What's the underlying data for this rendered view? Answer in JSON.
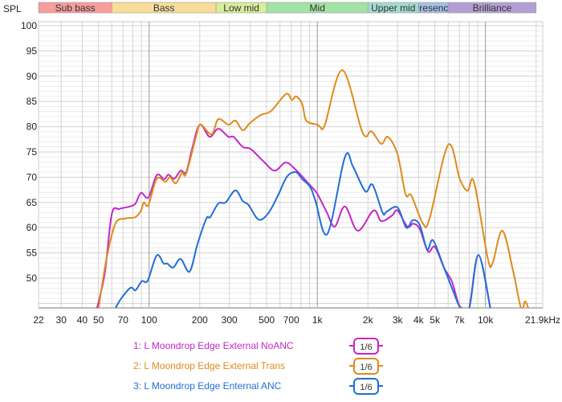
{
  "chart_data": {
    "type": "line",
    "ylabel": "SPL",
    "x_scale": "log",
    "xlim": [
      22,
      21900
    ],
    "ylim": [
      44.1,
      100.8
    ],
    "grid": true,
    "y_ticks": [
      50,
      55,
      60,
      65,
      70,
      75,
      80,
      85,
      90,
      95,
      100
    ],
    "x_ticks": [
      {
        "v": 22,
        "label": "22"
      },
      {
        "v": 30,
        "label": "30"
      },
      {
        "v": 40,
        "label": "40"
      },
      {
        "v": 50,
        "label": "50"
      },
      {
        "v": 70,
        "label": "70"
      },
      {
        "v": 100,
        "label": "100"
      },
      {
        "v": 200,
        "label": "200"
      },
      {
        "v": 300,
        "label": "300"
      },
      {
        "v": 500,
        "label": "500"
      },
      {
        "v": 700,
        "label": "700"
      },
      {
        "v": 1000,
        "label": "1k"
      },
      {
        "v": 2000,
        "label": "2k"
      },
      {
        "v": 3000,
        "label": "3k"
      },
      {
        "v": 4000,
        "label": "4k"
      },
      {
        "v": 5000,
        "label": "5k"
      },
      {
        "v": 7000,
        "label": "7k"
      },
      {
        "v": 10000,
        "label": "10k"
      },
      {
        "v": 21900,
        "label": "21.9kHz"
      }
    ],
    "bands": [
      {
        "name": "Sub bass",
        "from": 22,
        "to": 60,
        "color": "#f89c9c"
      },
      {
        "name": "Bass",
        "from": 60,
        "to": 250,
        "color": "#f8dd9a"
      },
      {
        "name": "Low mid",
        "from": 250,
        "to": 500,
        "color": "#d8ec9c"
      },
      {
        "name": "Mid",
        "from": 500,
        "to": 2000,
        "color": "#a2e2a4"
      },
      {
        "name": "Upper mid",
        "from": 2000,
        "to": 4000,
        "color": "#a2dbd0"
      },
      {
        "name": "Presence",
        "from": 4000,
        "to": 6000,
        "color": "#a6bfe8"
      },
      {
        "name": "Brilliance",
        "from": 6000,
        "to": 20000,
        "color": "#b3a0d3"
      }
    ],
    "series": [
      {
        "name": "1: L Moondrop Edge External NoANC",
        "smoothing": "1/6",
        "color": "#c626c6",
        "points": [
          [
            49,
            44
          ],
          [
            54.5,
            51
          ],
          [
            60,
            62.7
          ],
          [
            66.5,
            63.7
          ],
          [
            77,
            64.2
          ],
          [
            83,
            64.8
          ],
          [
            89.5,
            66.9
          ],
          [
            99,
            66
          ],
          [
            111,
            70.4
          ],
          [
            123,
            69.6
          ],
          [
            130,
            70.5
          ],
          [
            141,
            69.7
          ],
          [
            154,
            71.3
          ],
          [
            166,
            71
          ],
          [
            180,
            75.6
          ],
          [
            200,
            80.4
          ],
          [
            229,
            78
          ],
          [
            258,
            79.6
          ],
          [
            296,
            78
          ],
          [
            318,
            78
          ],
          [
            360,
            76
          ],
          [
            401,
            75.6
          ],
          [
            473,
            73.3
          ],
          [
            557,
            71.3
          ],
          [
            647,
            72.9
          ],
          [
            738,
            71.6
          ],
          [
            900,
            68.5
          ],
          [
            1000,
            66.7
          ],
          [
            1140,
            63
          ],
          [
            1270,
            60.2
          ],
          [
            1460,
            64.2
          ],
          [
            1740,
            59.4
          ],
          [
            2160,
            63.4
          ],
          [
            2400,
            61.3
          ],
          [
            2780,
            62.4
          ],
          [
            3000,
            63.4
          ],
          [
            3430,
            60.2
          ],
          [
            3720,
            60.8
          ],
          [
            4070,
            59.7
          ],
          [
            4550,
            55.3
          ],
          [
            5000,
            56.2
          ],
          [
            5680,
            52
          ],
          [
            6300,
            49.4
          ],
          [
            6900,
            45
          ],
          [
            7300,
            44
          ],
          [
            8000,
            44
          ],
          [
            9080,
            54.6
          ],
          [
            10700,
            44
          ]
        ]
      },
      {
        "name": "2: L Moondrop Edge External Trans",
        "smoothing": "1/6",
        "color": "#e08a1a",
        "points": [
          [
            50,
            44
          ],
          [
            56,
            54.1
          ],
          [
            63,
            60.8
          ],
          [
            72,
            61.8
          ],
          [
            83,
            62.1
          ],
          [
            89.5,
            63.4
          ],
          [
            93,
            65
          ],
          [
            99,
            64.5
          ],
          [
            111,
            69.7
          ],
          [
            125,
            69.1
          ],
          [
            133,
            70
          ],
          [
            144,
            68.8
          ],
          [
            157,
            70.9
          ],
          [
            166,
            70.7
          ],
          [
            190,
            78
          ],
          [
            202,
            80.4
          ],
          [
            235,
            78.5
          ],
          [
            258,
            81.5
          ],
          [
            296,
            80.4
          ],
          [
            326,
            81.2
          ],
          [
            360,
            79.3
          ],
          [
            397,
            80.7
          ],
          [
            460,
            82.3
          ],
          [
            530,
            83.1
          ],
          [
            653,
            86.5
          ],
          [
            705,
            85.3
          ],
          [
            750,
            86
          ],
          [
            815,
            84.4
          ],
          [
            860,
            81.2
          ],
          [
            1000,
            80.4
          ],
          [
            1040,
            80
          ],
          [
            1110,
            80.4
          ],
          [
            1410,
            91.2
          ],
          [
            1860,
            78.8
          ],
          [
            2100,
            79.1
          ],
          [
            2400,
            76.6
          ],
          [
            2630,
            78
          ],
          [
            3000,
            74.5
          ],
          [
            3350,
            66.6
          ],
          [
            3620,
            66.4
          ],
          [
            4250,
            60.8
          ],
          [
            4650,
            61.8
          ],
          [
            6000,
            76.4
          ],
          [
            7040,
            69.6
          ],
          [
            7830,
            67.3
          ],
          [
            8550,
            69
          ],
          [
            10300,
            54.1
          ],
          [
            11000,
            52.9
          ],
          [
            12600,
            59.4
          ],
          [
            14600,
            51.4
          ],
          [
            16300,
            44
          ],
          [
            17200,
            45.4
          ],
          [
            18000,
            44
          ]
        ]
      },
      {
        "name": "3: L Moondrop Edge Enternal ANC",
        "smoothing": "1/6",
        "color": "#1f6fd6",
        "points": [
          [
            63,
            44
          ],
          [
            68,
            45.9
          ],
          [
            77.6,
            48.1
          ],
          [
            83,
            47.6
          ],
          [
            90.5,
            49.4
          ],
          [
            98,
            49.5
          ],
          [
            111,
            54.5
          ],
          [
            122,
            52.9
          ],
          [
            128,
            52.9
          ],
          [
            139,
            52.1
          ],
          [
            154,
            53.8
          ],
          [
            174,
            51.3
          ],
          [
            194,
            56.8
          ],
          [
            219,
            61.8
          ],
          [
            231,
            62.1
          ],
          [
            258,
            64.8
          ],
          [
            285,
            65
          ],
          [
            326,
            67.4
          ],
          [
            360,
            65.3
          ],
          [
            390,
            64.5
          ],
          [
            448,
            61.6
          ],
          [
            512,
            62.9
          ],
          [
            584,
            66.4
          ],
          [
            660,
            70.1
          ],
          [
            745,
            71
          ],
          [
            815,
            69.6
          ],
          [
            910,
            68
          ],
          [
            975,
            65.3
          ],
          [
            1150,
            58.8
          ],
          [
            1460,
            74
          ],
          [
            1630,
            72.1
          ],
          [
            1930,
            67.2
          ],
          [
            2130,
            68.5
          ],
          [
            2450,
            62.9
          ],
          [
            2590,
            63.2
          ],
          [
            3000,
            64
          ],
          [
            3380,
            60
          ],
          [
            3700,
            61.5
          ],
          [
            4070,
            60.5
          ],
          [
            4500,
            55.7
          ],
          [
            4880,
            57.5
          ],
          [
            5680,
            52
          ],
          [
            6360,
            47.8
          ],
          [
            7130,
            44
          ],
          [
            8000,
            44
          ],
          [
            9080,
            54.6
          ],
          [
            10700,
            44
          ]
        ]
      }
    ]
  }
}
